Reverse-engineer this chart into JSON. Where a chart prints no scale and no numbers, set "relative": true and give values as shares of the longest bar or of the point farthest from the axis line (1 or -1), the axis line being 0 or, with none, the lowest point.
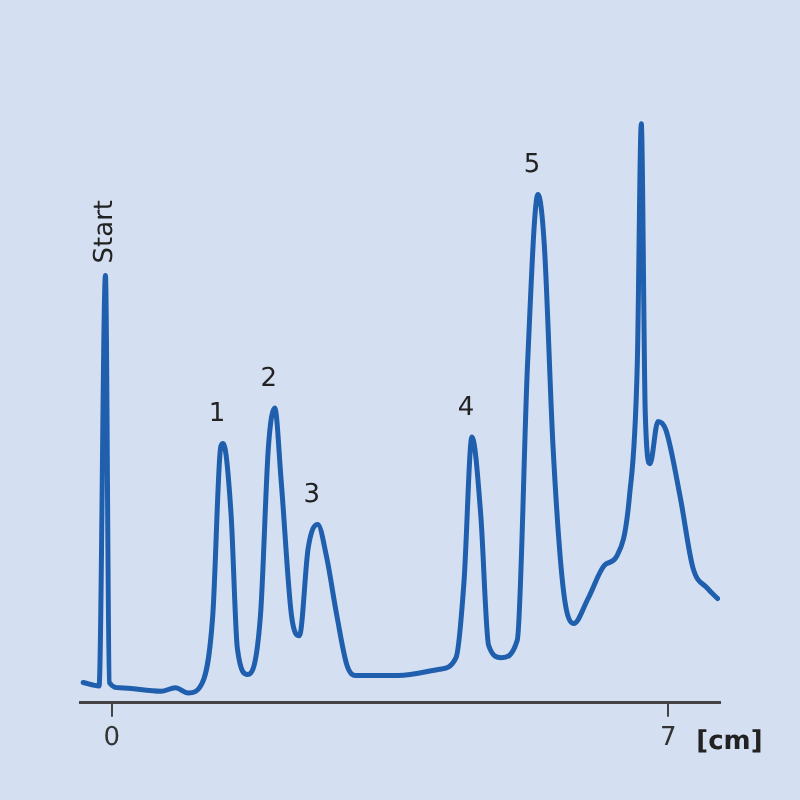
{
  "chart_data": {
    "type": "line",
    "relative": true,
    "xlabel": "[cm]",
    "xlim": [
      -0.4,
      7.65
    ],
    "xticks": [
      0,
      7
    ],
    "grid": false,
    "legend": false,
    "marker": "none",
    "line_style": "solid",
    "x": [
      -0.36,
      -0.16,
      -0.08,
      -0.03,
      0.1,
      0.62,
      0.8,
      0.96,
      1.14,
      1.27,
      1.37,
      1.4,
      1.5,
      1.58,
      1.71,
      1.87,
      1.97,
      2.05,
      2.13,
      2.26,
      2.36,
      2.47,
      2.59,
      2.7,
      2.83,
      2.96,
      3.08,
      3.6,
      4.12,
      4.33,
      4.43,
      4.53,
      4.64,
      4.74,
      4.9,
      5.1,
      5.23,
      5.36,
      5.44,
      5.55,
      5.68,
      5.81,
      5.99,
      6.2,
      6.35,
      6.51,
      6.61,
      6.66,
      6.71,
      6.77,
      6.87,
      6.97,
      7.15,
      7.31,
      7.49,
      7.62
    ],
    "series": [
      {
        "color": "#1f5fae",
        "values": [
          0.035,
          0.029,
          0.738,
          0.035,
          0.026,
          0.02,
          0.026,
          0.017,
          0.035,
          0.151,
          0.442,
          0.448,
          0.326,
          0.093,
          0.049,
          0.151,
          0.442,
          0.509,
          0.384,
          0.151,
          0.116,
          0.267,
          0.308,
          0.253,
          0.151,
          0.064,
          0.047,
          0.047,
          0.058,
          0.078,
          0.209,
          0.459,
          0.326,
          0.099,
          0.078,
          0.108,
          0.587,
          0.878,
          0.791,
          0.442,
          0.195,
          0.137,
          0.18,
          0.238,
          0.253,
          0.355,
          0.587,
          1.0,
          0.5,
          0.413,
          0.486,
          0.471,
          0.355,
          0.233,
          0.198,
          0.18
        ]
      }
    ],
    "annotations": [
      {
        "text": "Start",
        "x": -0.08,
        "y": 0.738
      },
      {
        "text": "1",
        "x": 1.4,
        "y": 0.448
      },
      {
        "text": "2",
        "x": 2.05,
        "y": 0.509
      },
      {
        "text": "3",
        "x": 2.59,
        "y": 0.308
      },
      {
        "text": "4",
        "x": 4.53,
        "y": 0.459
      },
      {
        "text": "5",
        "x": 5.36,
        "y": 0.878
      }
    ]
  }
}
